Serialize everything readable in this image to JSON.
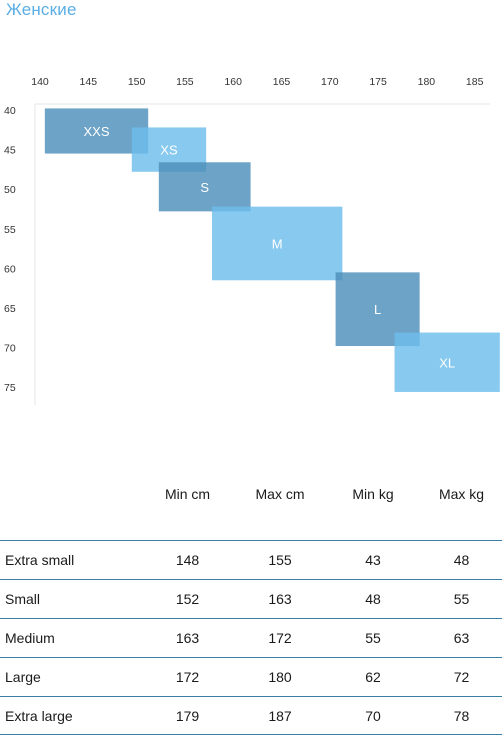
{
  "page": {
    "title": "Женские"
  },
  "chart_data": {
    "type": "range-boxes",
    "x_ticks": [
      "140",
      "145",
      "150",
      "155",
      "160",
      "165",
      "170",
      "175",
      "180",
      "185"
    ],
    "y_ticks": [
      "40",
      "45",
      "50",
      "55",
      "60",
      "65",
      "70",
      "75"
    ],
    "x_range": [
      137,
      188
    ],
    "y_range": [
      39,
      77
    ],
    "colors": {
      "dark": "#4d8fba",
      "light": "#6cbdec"
    },
    "boxes": [
      {
        "label": "XXS",
        "x": [
          140.5,
          151.2
        ],
        "y": [
          39.8,
          45.5
        ],
        "shade": "dark"
      },
      {
        "label": "XS",
        "x": [
          149.5,
          157.2
        ],
        "y": [
          42.2,
          47.8
        ],
        "shade": "light"
      },
      {
        "label": "S",
        "x": [
          152.3,
          161.8
        ],
        "y": [
          46.6,
          52.8
        ],
        "shade": "dark"
      },
      {
        "label": "M",
        "x": [
          157.8,
          171.3
        ],
        "y": [
          52.2,
          61.5
        ],
        "shade": "light"
      },
      {
        "label": "L",
        "x": [
          170.6,
          179.3
        ],
        "y": [
          60.5,
          69.8
        ],
        "shade": "dark"
      },
      {
        "label": "XL",
        "x": [
          176.7,
          187.6
        ],
        "y": [
          68.1,
          75.6
        ],
        "shade": "light"
      }
    ]
  },
  "table": {
    "headers": [
      "",
      "Min cm",
      "Max cm",
      "Min kg",
      "Max kg"
    ],
    "rows": [
      [
        "Extra small",
        "148",
        "155",
        "43",
        "48"
      ],
      [
        "Small",
        "152",
        "163",
        "48",
        "55"
      ],
      [
        "Medium",
        "163",
        "172",
        "55",
        "63"
      ],
      [
        "Large",
        "172",
        "180",
        "62",
        "72"
      ],
      [
        "Extra large",
        "179",
        "187",
        "70",
        "78"
      ]
    ]
  }
}
